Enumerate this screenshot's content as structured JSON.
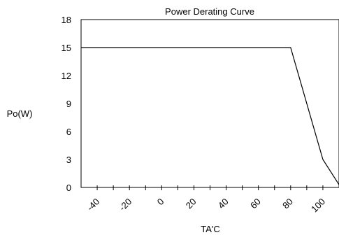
{
  "chart_data": {
    "type": "line",
    "title": "Power Derating Curve",
    "xlabel": "TA'C",
    "ylabel": "Po(W)",
    "xlim": [
      -50,
      110
    ],
    "ylim": [
      0,
      18
    ],
    "xticks": [
      -40,
      -20,
      0,
      20,
      40,
      60,
      80,
      100
    ],
    "xtick_labels": [
      "-40",
      "-20",
      "0",
      "20",
      "40",
      "60",
      "80",
      "100"
    ],
    "yticks": [
      0,
      3,
      6,
      9,
      12,
      15,
      18
    ],
    "ytick_labels": [
      "0",
      "3",
      "6",
      "9",
      "12",
      "15",
      "18"
    ],
    "minor_xtick_step": 10,
    "grid": false,
    "series": [
      {
        "x": [
          -50,
          80,
          100,
          110
        ],
        "y": [
          15,
          15,
          3,
          0.3
        ]
      }
    ]
  }
}
